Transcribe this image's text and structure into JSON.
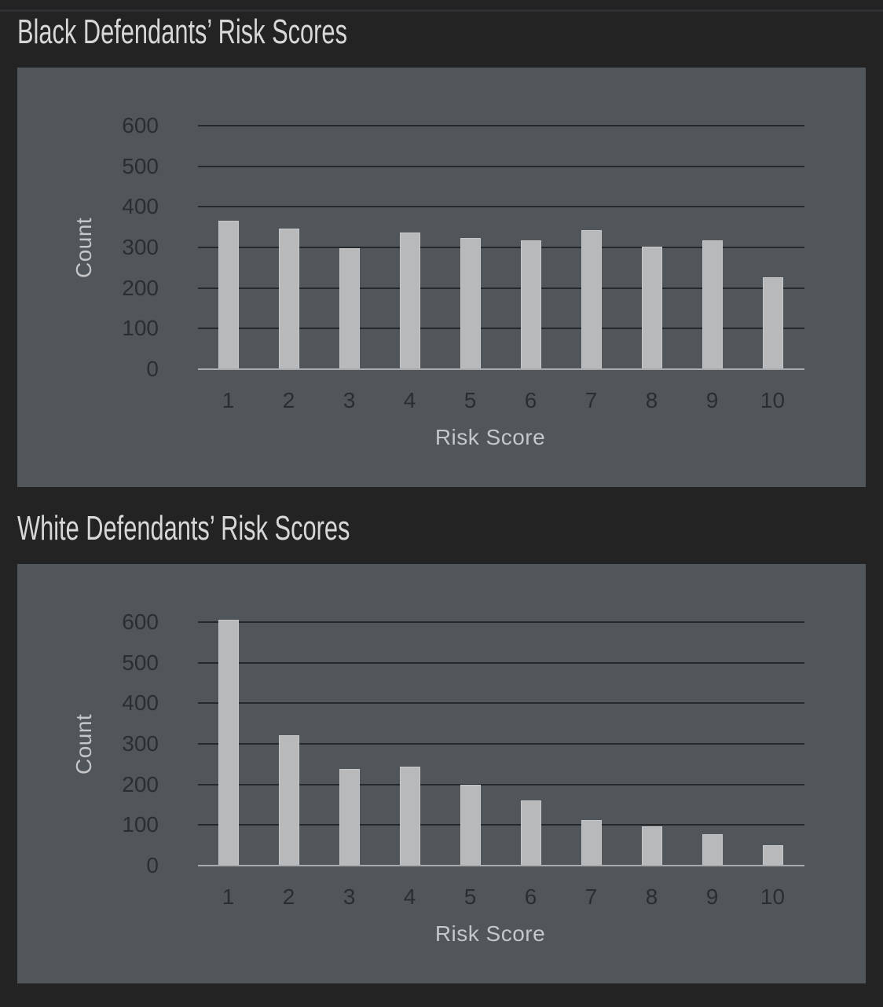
{
  "colors": {
    "page-bg": "#232323",
    "panel-bg": "#51565b",
    "bar-fill": "#b8b9bb",
    "bar-edge": "#c7c8ca",
    "gridline": "#26292b",
    "baseline": "#a8abae",
    "tick-label": "#2b2e31",
    "axis-title": "#c4c6c7",
    "chart-title": "#d6d7d8"
  },
  "chart_data": [
    {
      "type": "bar",
      "title": "Black Defendants’ Risk Scores",
      "xlabel": "Risk Score",
      "ylabel": "Count",
      "categories": [
        "1",
        "2",
        "3",
        "4",
        "5",
        "6",
        "7",
        "8",
        "9",
        "10"
      ],
      "values": [
        365,
        346,
        298,
        337,
        323,
        318,
        343,
        301,
        317,
        227
      ],
      "ylim": [
        0,
        600
      ],
      "y_ticks": [
        0,
        100,
        200,
        300,
        400,
        500,
        600
      ],
      "grid": true,
      "legend": false
    },
    {
      "type": "bar",
      "title": "White Defendants’ Risk Scores",
      "xlabel": "Risk Score",
      "ylabel": "Count",
      "categories": [
        "1",
        "2",
        "3",
        "4",
        "5",
        "6",
        "7",
        "8",
        "9",
        "10"
      ],
      "values": [
        605,
        321,
        238,
        243,
        200,
        160,
        113,
        96,
        77,
        51
      ],
      "ylim": [
        0,
        600
      ],
      "y_ticks": [
        0,
        100,
        200,
        300,
        400,
        500,
        600
      ],
      "grid": true,
      "legend": false
    }
  ]
}
